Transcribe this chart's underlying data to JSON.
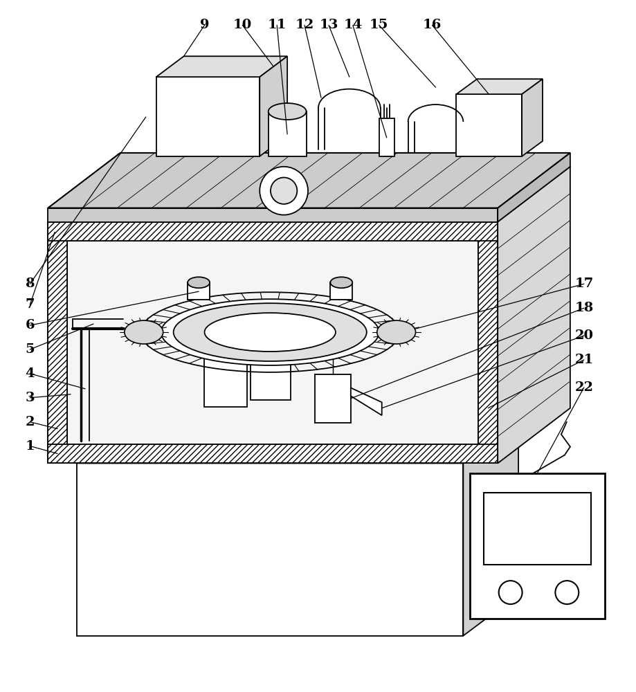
{
  "bg_color": "#ffffff",
  "line_color": "#000000",
  "label_color": "#000000",
  "figsize": [
    9.19,
    10.0
  ],
  "dpi": 100
}
